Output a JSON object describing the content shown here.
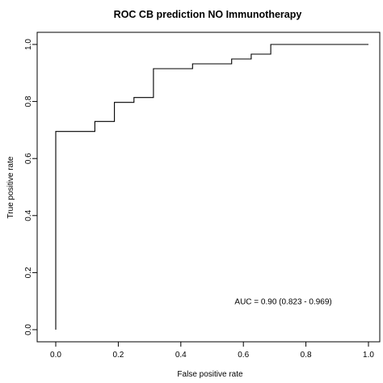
{
  "chart_data": {
    "type": "line",
    "title": "ROC CB prediction NO Immunotherapy",
    "xlabel": "False positive rate",
    "ylabel": "True positive rate",
    "xlim": [
      0,
      1
    ],
    "ylim": [
      0,
      1
    ],
    "x_ticks": [
      "0.0",
      "0.2",
      "0.4",
      "0.6",
      "0.8",
      "1.0"
    ],
    "y_ticks": [
      "0.0",
      "0.2",
      "0.4",
      "0.6",
      "0.8",
      "1.0"
    ],
    "grid": false,
    "series": [
      {
        "x": [
          0.0,
          0.0,
          0.125,
          0.125,
          0.1875,
          0.1875,
          0.25,
          0.25,
          0.3125,
          0.3125,
          0.4375,
          0.4375,
          0.5625,
          0.5625,
          0.625,
          0.625,
          0.6875,
          0.6875,
          1.0
        ],
        "y": [
          0.0,
          0.695,
          0.695,
          0.73,
          0.73,
          0.797,
          0.797,
          0.814,
          0.814,
          0.915,
          0.915,
          0.932,
          0.932,
          0.949,
          0.949,
          0.966,
          0.966,
          1.0,
          1.0
        ]
      }
    ],
    "annotations": [
      {
        "text": "AUC = 0.90 (0.823 - 0.969)",
        "x": 0.8,
        "y": 0.1
      }
    ]
  },
  "colors": {
    "line": "#000000",
    "frame": "#000000",
    "background": "#ffffff"
  }
}
